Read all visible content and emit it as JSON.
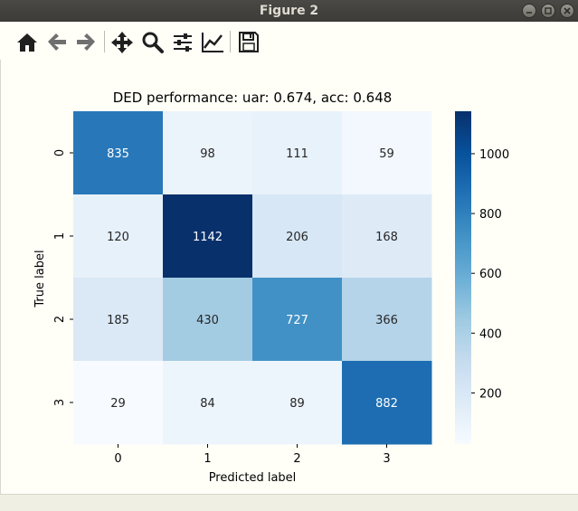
{
  "window": {
    "title": "Figure 2"
  },
  "toolbar": {
    "tools": [
      {
        "name": "home-icon"
      },
      {
        "name": "back-arrow-icon"
      },
      {
        "name": "forward-arrow-icon"
      },
      {
        "name": "pan-icon"
      },
      {
        "name": "zoom-icon"
      },
      {
        "name": "configure-subplots-icon"
      },
      {
        "name": "edit-axis-icon"
      },
      {
        "name": "save-icon"
      }
    ]
  },
  "chart_data": {
    "type": "heatmap",
    "title": "DED performance: uar: 0.674, acc: 0.648",
    "xlabel": "Predicted label",
    "ylabel": "True label",
    "x_categories": [
      "0",
      "1",
      "2",
      "3"
    ],
    "y_categories": [
      "0",
      "1",
      "2",
      "3"
    ],
    "values": [
      [
        835,
        98,
        111,
        59
      ],
      [
        120,
        1142,
        206,
        168
      ],
      [
        185,
        430,
        727,
        366
      ],
      [
        29,
        84,
        89,
        882
      ]
    ],
    "colormap": "Blues",
    "colorbar": {
      "min": 29,
      "max": 1142,
      "ticks": [
        "200",
        "400",
        "600",
        "800",
        "1000"
      ]
    }
  }
}
